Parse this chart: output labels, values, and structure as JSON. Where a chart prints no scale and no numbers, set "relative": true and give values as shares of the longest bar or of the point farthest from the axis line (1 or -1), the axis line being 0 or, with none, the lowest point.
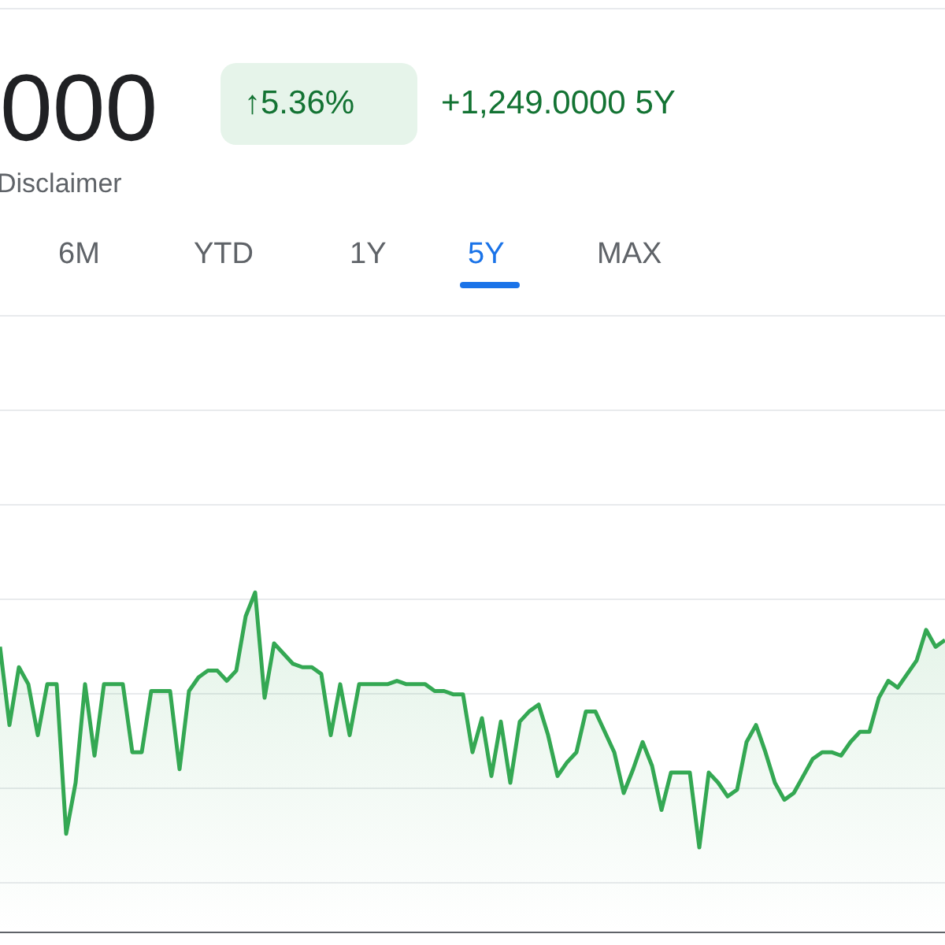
{
  "chart_data": {
    "type": "area",
    "title": "000",
    "relative": true,
    "grid": "y",
    "legend": false,
    "annotations": [
      "↑5.36%",
      "+1,249.0000 5Y",
      "Disclaimer",
      "6M",
      "YTD",
      "1Y",
      "5Y",
      "MAX"
    ],
    "categories": [
      null,
      null,
      null,
      null,
      null,
      null,
      null,
      null,
      null,
      null,
      null,
      null,
      null,
      null,
      null,
      null,
      null,
      null,
      null,
      null,
      null,
      null,
      null,
      null,
      null,
      null,
      null,
      null,
      null,
      null,
      null,
      null,
      null,
      null,
      null,
      null,
      null,
      null,
      null,
      null,
      null,
      null,
      null,
      null,
      null,
      null,
      null,
      null,
      null,
      null,
      null,
      null,
      null,
      null,
      null,
      null,
      null,
      null,
      null,
      null,
      null,
      null,
      null,
      null,
      null,
      null,
      null,
      null,
      null,
      null,
      null,
      null,
      null,
      null,
      null,
      null,
      null,
      null,
      null,
      null,
      null,
      null,
      null,
      null,
      null,
      null,
      null,
      null,
      null,
      null,
      null,
      null,
      null,
      null,
      null,
      null,
      null,
      null,
      null,
      null,
      null
    ],
    "series": [
      {
        "color": "#34a853",
        "values": [
          0.84,
          0.61,
          0.78,
          0.73,
          0.58,
          0.73,
          0.73,
          0.29,
          0.44,
          0.73,
          0.52,
          0.73,
          0.73,
          0.73,
          0.53,
          0.53,
          0.71,
          0.71,
          0.71,
          0.48,
          0.71,
          0.75,
          0.77,
          0.77,
          0.74,
          0.77,
          0.93,
          1,
          0.69,
          0.85,
          0.82,
          0.79,
          0.78,
          0.78,
          0.76,
          0.58,
          0.73,
          0.58,
          0.73,
          0.73,
          0.73,
          0.73,
          0.74,
          0.73,
          0.73,
          0.73,
          0.71,
          0.71,
          0.7,
          0.7,
          0.53,
          0.63,
          0.46,
          0.62,
          0.44,
          0.62,
          0.65,
          0.67,
          0.58,
          0.46,
          0.5,
          0.53,
          0.65,
          0.65,
          0.59,
          0.53,
          0.41,
          0.48,
          0.56,
          0.49,
          0.36,
          0.47,
          0.47,
          0.47,
          0.25,
          0.47,
          0.44,
          0.4,
          0.42,
          0.56,
          0.61,
          0.53,
          0.44,
          0.39,
          0.41,
          0.46,
          0.51,
          0.53,
          0.53,
          0.52,
          0.56,
          0.59,
          0.59,
          0.69,
          0.74,
          0.72,
          0.76,
          0.8,
          0.89,
          0.84,
          0.86
        ]
      }
    ]
  }
}
